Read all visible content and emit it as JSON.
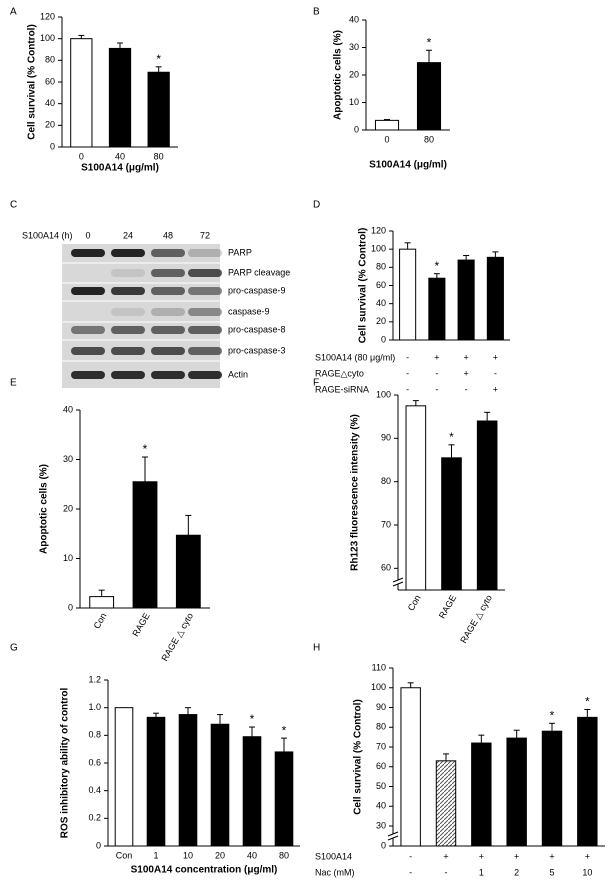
{
  "chart_data": [
    {
      "type": "bar",
      "panel": "A",
      "ylabel": "Cell survival (% Control)",
      "xlabel": "S100A14 (μg/ml)",
      "categories": [
        "0",
        "40",
        "80"
      ],
      "values": [
        100,
        91,
        69
      ],
      "errors": [
        3,
        5,
        5
      ],
      "colors": [
        "#ffffff",
        "#000000",
        "#000000"
      ],
      "significance": [
        null,
        null,
        "*"
      ],
      "ylim": [
        0,
        120
      ],
      "yticks": [
        0,
        20,
        40,
        60,
        80,
        100,
        120
      ]
    },
    {
      "type": "bar",
      "panel": "B",
      "ylabel": "Apoptotic cells (%)",
      "xlabel": "S100A14 (μg/ml)",
      "categories": [
        "0",
        "80"
      ],
      "values": [
        3.5,
        24.5
      ],
      "errors": [
        0.3,
        4.5
      ],
      "colors": [
        "#ffffff",
        "#000000"
      ],
      "significance": [
        null,
        "*"
      ],
      "ylim": [
        0,
        40
      ],
      "yticks": [
        0,
        10,
        20,
        30,
        40
      ]
    },
    {
      "type": "bar",
      "panel": "D",
      "ylabel": "Cell survival (% Control)",
      "values": [
        100,
        68,
        88,
        91
      ],
      "errors": [
        7,
        5,
        5,
        6
      ],
      "colors": [
        "#ffffff",
        "#000000",
        "#000000",
        "#000000"
      ],
      "significance": [
        null,
        "*",
        null,
        null
      ],
      "ylim": [
        0,
        120
      ],
      "yticks": [
        0,
        20,
        40,
        60,
        80,
        100,
        120
      ],
      "conditions": [
        {
          "name": "S100A14 (80 μg/ml)",
          "signs": [
            "-",
            "+",
            "+",
            "+"
          ]
        },
        {
          "name": "RAGE△cyto",
          "signs": [
            "-",
            "-",
            "+",
            "-"
          ]
        },
        {
          "name": "RAGE-siRNA",
          "signs": [
            "-",
            "-",
            "-",
            "+"
          ]
        }
      ]
    },
    {
      "type": "bar",
      "panel": "E",
      "ylabel": "Apoptotic cells (%)",
      "categories": [
        "Con",
        "RAGE",
        "RAGE △ cyto"
      ],
      "values": [
        2.3,
        25.5,
        14.7
      ],
      "errors": [
        1.3,
        5,
        4
      ],
      "colors": [
        "#ffffff",
        "#000000",
        "#000000"
      ],
      "significance": [
        null,
        "*",
        null
      ],
      "ylim": [
        0,
        40
      ],
      "yticks": [
        0,
        10,
        20,
        30,
        40
      ]
    },
    {
      "type": "bar",
      "panel": "F",
      "ylabel": "Rh123 fluorescence intensity (%)",
      "categories": [
        "Con",
        "RAGE",
        "RAGE △ cyto"
      ],
      "values": [
        97.5,
        85.5,
        94
      ],
      "errors": [
        1.2,
        3,
        2
      ],
      "colors": [
        "#ffffff",
        "#000000",
        "#000000"
      ],
      "significance": [
        null,
        "*",
        null
      ],
      "ylim": [
        55,
        100
      ],
      "yticks": [
        60,
        70,
        80,
        90,
        100
      ],
      "axis_break": true
    },
    {
      "type": "bar",
      "panel": "G",
      "ylabel": "ROS inhibitory ability of control",
      "xlabel": "S100A14 concentration (μg/ml)",
      "categories": [
        "Con",
        "1",
        "10",
        "20",
        "40",
        "80"
      ],
      "values": [
        1.0,
        0.93,
        0.95,
        0.88,
        0.79,
        0.68
      ],
      "errors": [
        0,
        0.03,
        0.05,
        0.07,
        0.07,
        0.1
      ],
      "colors": [
        "#ffffff",
        "#000000",
        "#000000",
        "#000000",
        "#000000",
        "#000000"
      ],
      "significance": [
        null,
        null,
        null,
        null,
        "*",
        "*"
      ],
      "ylim": [
        0,
        1.2
      ],
      "yticks": [
        0,
        0.2,
        0.4,
        0.6,
        0.8,
        {
          "value": 1.0,
          "label": "1.0"
        },
        1.2
      ]
    },
    {
      "type": "bar",
      "panel": "H",
      "ylabel": "Cell survival (% Control)",
      "values": [
        100,
        63,
        72,
        74.5,
        78,
        85
      ],
      "errors": [
        2.5,
        3.5,
        4,
        4,
        4,
        4
      ],
      "colors": [
        "#ffffff",
        "hatch",
        "#000000",
        "#000000",
        "#000000",
        "#000000"
      ],
      "significance": [
        null,
        null,
        null,
        null,
        "*",
        "*"
      ],
      "ylim": [
        0,
        110
      ],
      "yticks": [
        0,
        30,
        40,
        50,
        60,
        70,
        80,
        90,
        100,
        110
      ],
      "axis_break": true,
      "conditions": [
        {
          "name": "S100A14",
          "signs": [
            "-",
            "+",
            "+",
            "+",
            "+",
            "+"
          ]
        },
        {
          "name": "Nac (mM)",
          "signs": [
            "-",
            "-",
            "1",
            "2",
            "5",
            "10"
          ]
        }
      ]
    }
  ],
  "blot": {
    "panel": "C",
    "treatment": "S100A14 (h)",
    "lanes": [
      "0",
      "24",
      "48",
      "72"
    ],
    "rows": [
      "PARP",
      "PARP cleavage",
      "pro-caspase-9",
      "caspase-9",
      "pro-caspase-8",
      "pro-caspase-3",
      "Actin"
    ]
  }
}
